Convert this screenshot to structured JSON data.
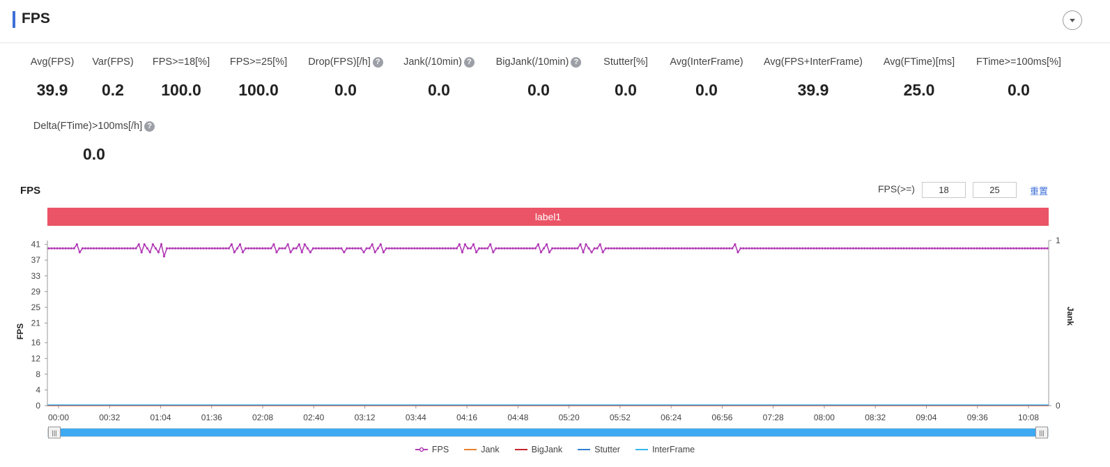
{
  "header": {
    "title": "FPS"
  },
  "metrics": [
    {
      "label": "Avg(FPS)",
      "value": "39.9",
      "help": false
    },
    {
      "label": "Var(FPS)",
      "value": "0.2",
      "help": false
    },
    {
      "label": "FPS>=18[%]",
      "value": "100.0",
      "help": false
    },
    {
      "label": "FPS>=25[%]",
      "value": "100.0",
      "help": false
    },
    {
      "label": "Drop(FPS)[/h]",
      "value": "0.0",
      "help": true
    },
    {
      "label": "Jank(/10min)",
      "value": "0.0",
      "help": true
    },
    {
      "label": "BigJank(/10min)",
      "value": "0.0",
      "help": true
    },
    {
      "label": "Stutter[%]",
      "value": "0.0",
      "help": false
    },
    {
      "label": "Avg(InterFrame)",
      "value": "0.0",
      "help": false
    },
    {
      "label": "Avg(FPS+InterFrame)",
      "value": "39.9",
      "help": false
    },
    {
      "label": "Avg(FTime)[ms]",
      "value": "25.0",
      "help": false
    },
    {
      "label": "FTime>=100ms[%]",
      "value": "0.0",
      "help": false
    },
    {
      "label": "Delta(FTime)>100ms[/h]",
      "value": "0.0",
      "help": true
    }
  ],
  "chart_header": {
    "title": "FPS",
    "threshold_label": "FPS(>=)",
    "threshold_low": "18",
    "threshold_high": "25",
    "reset_label": "重置"
  },
  "label_bar": {
    "text": "label1",
    "color": "#ea5466"
  },
  "chart_data": {
    "type": "line",
    "ylabel": "FPS",
    "y2label": "Jank",
    "yticks": [
      0,
      4,
      8,
      12,
      16,
      21,
      25,
      29,
      33,
      37,
      41
    ],
    "y2ticks": [
      0,
      1
    ],
    "ylim": [
      0,
      42
    ],
    "y2lim": [
      0,
      1
    ],
    "x_ticks": [
      "00:00",
      "00:32",
      "01:04",
      "01:36",
      "02:08",
      "02:40",
      "03:12",
      "03:44",
      "04:16",
      "04:48",
      "05:20",
      "05:52",
      "06:24",
      "06:56",
      "07:28",
      "08:00",
      "08:32",
      "09:04",
      "09:36",
      "10:08"
    ],
    "x_range_seconds": [
      0,
      628
    ],
    "grid": false,
    "legend_position": "bottom",
    "series": [
      {
        "name": "FPS",
        "color": "#b13bb5",
        "marker": "circle",
        "baseline": 40,
        "values": [
          40,
          40,
          40,
          40,
          40,
          40,
          40,
          40,
          40,
          40,
          41,
          39,
          40,
          40,
          40,
          40,
          40,
          40,
          40,
          40,
          40,
          40,
          40,
          40,
          40,
          40,
          40,
          40,
          40,
          40,
          40,
          40,
          41,
          39,
          41,
          40,
          39,
          41,
          40,
          39,
          41,
          38,
          40,
          40,
          40,
          40,
          40,
          40,
          40,
          40,
          40,
          40,
          40,
          40,
          40,
          40,
          40,
          40,
          40,
          40,
          40,
          40,
          40,
          40,
          40,
          41,
          39,
          40,
          41,
          39,
          40,
          40,
          40,
          40,
          40,
          40,
          40,
          40,
          40,
          40,
          41,
          39,
          40,
          40,
          40,
          41,
          39,
          40,
          40,
          41,
          39,
          41,
          40,
          39,
          40,
          40,
          40,
          40,
          40,
          40,
          40,
          40,
          40,
          40,
          40,
          39,
          40,
          40,
          40,
          40,
          40,
          40,
          39,
          40,
          40,
          41,
          39,
          40,
          41,
          39,
          40,
          40,
          40,
          40,
          40,
          40,
          40,
          40,
          40,
          40,
          40,
          40,
          40,
          40,
          40,
          40,
          40,
          40,
          40,
          40,
          40,
          40,
          40,
          40,
          40,
          40,
          41,
          39,
          41,
          40,
          40,
          41,
          39,
          40,
          40,
          40,
          40,
          41,
          39,
          40,
          40,
          40,
          40,
          40,
          40,
          40,
          40,
          40,
          40,
          40,
          40,
          40,
          40,
          40,
          41,
          39,
          40,
          41,
          39,
          40,
          40,
          40,
          40,
          40,
          40,
          40,
          40,
          40,
          40,
          41,
          39,
          41,
          40,
          39,
          40,
          40,
          41,
          39,
          40,
          40,
          40,
          40,
          40,
          40,
          40,
          40,
          40,
          40,
          40,
          40,
          40,
          40,
          40,
          40,
          40,
          40,
          40,
          40,
          40,
          40,
          40,
          40,
          40,
          40,
          40,
          40,
          40,
          40,
          40,
          40,
          40,
          40,
          40,
          40,
          40,
          40,
          40,
          40,
          40,
          40,
          40,
          40,
          40,
          40,
          41,
          39,
          40,
          40,
          40,
          40,
          40,
          40,
          40,
          40,
          40,
          40,
          40,
          40,
          40,
          40,
          40,
          40,
          40,
          40,
          40,
          40,
          40,
          40,
          40,
          40,
          40,
          40,
          40,
          40,
          40,
          40,
          40,
          40,
          40,
          40,
          40,
          40,
          40,
          40,
          40,
          40,
          40,
          40,
          40,
          40,
          40,
          40,
          40,
          40,
          40,
          40,
          40,
          40,
          40,
          40,
          40,
          40,
          40,
          40,
          40,
          40,
          40,
          40,
          40,
          40,
          40,
          40,
          40,
          40,
          40,
          40,
          40,
          40,
          40,
          40,
          40,
          40,
          40,
          40,
          40,
          40,
          40,
          40,
          40,
          40,
          40,
          40,
          40,
          40,
          40,
          40,
          40,
          40,
          40,
          40,
          40,
          40,
          40,
          40,
          40,
          40,
          40,
          40,
          40,
          40,
          40,
          40,
          40,
          40,
          40,
          40
        ]
      },
      {
        "name": "Jank",
        "color": "#e8812b",
        "baseline": 0
      },
      {
        "name": "BigJank",
        "color": "#c4232d",
        "baseline": 0
      },
      {
        "name": "Stutter",
        "color": "#2f7fd0",
        "baseline": 0
      },
      {
        "name": "InterFrame",
        "color": "#36b6e8",
        "baseline": 0
      }
    ]
  }
}
